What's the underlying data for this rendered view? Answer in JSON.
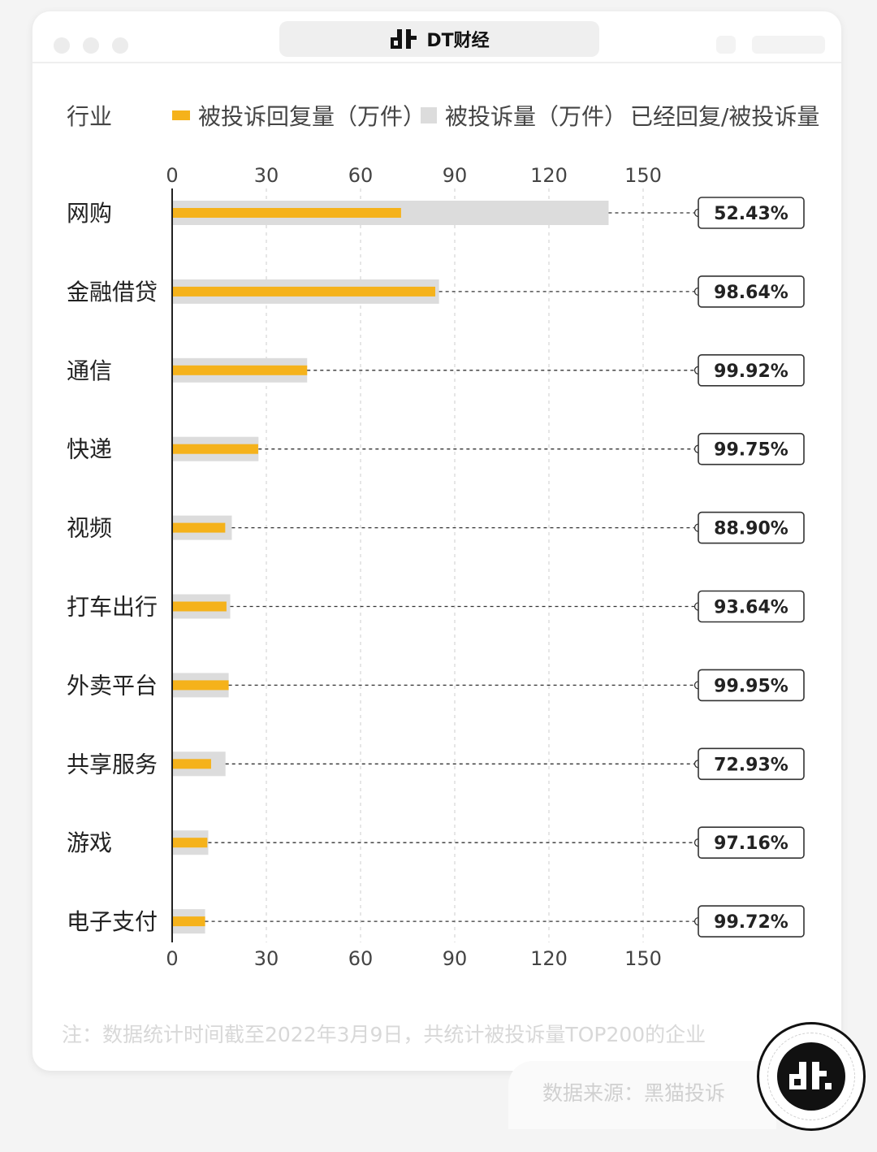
{
  "window": {
    "title": "DT财经",
    "logo_icon": "dt-logo-icon"
  },
  "colors": {
    "reply": "#F5B21B",
    "total": "#DCDCDC",
    "axis": "#222222",
    "text": "#222222"
  },
  "chart_data": {
    "type": "bar",
    "orientation": "horizontal",
    "category_header": "行业",
    "legend": [
      {
        "name": "被投诉回复量（万件）",
        "color": "#F5B21B"
      },
      {
        "name": "被投诉量（万件）",
        "color": "#DCDCDC"
      },
      {
        "name": "已经回复/被投诉量",
        "color": ""
      }
    ],
    "categories": [
      "网购",
      "金融借贷",
      "通信",
      "快递",
      "视频",
      "打车出行",
      "外卖平台",
      "共享服务",
      "游戏",
      "电子支付"
    ],
    "series": [
      {
        "name": "被投诉量（万件）",
        "values": [
          139,
          85,
          43,
          27.5,
          19,
          18.5,
          18,
          17,
          11.5,
          10.5
        ]
      },
      {
        "name": "被投诉回复量（万件）",
        "values": [
          72.9,
          83.8,
          43,
          27.4,
          16.9,
          17.3,
          18,
          12.4,
          11.2,
          10.5
        ]
      }
    ],
    "ratio_labels": [
      "52.43%",
      "98.64%",
      "99.92%",
      "99.75%",
      "88.90%",
      "93.64%",
      "99.95%",
      "72.93%",
      "97.16%",
      "99.72%"
    ],
    "x_ticks": [
      "0",
      "30",
      "60",
      "90",
      "120",
      "150"
    ],
    "xlim": [
      0,
      150
    ],
    "grid": "vertical-dashed",
    "legend_placement": "top"
  },
  "footer": {
    "note": "注：数据统计时间截至2022年3月9日，共统计被投诉量TOP200的企业",
    "source": "数据来源：黑猫投诉"
  }
}
